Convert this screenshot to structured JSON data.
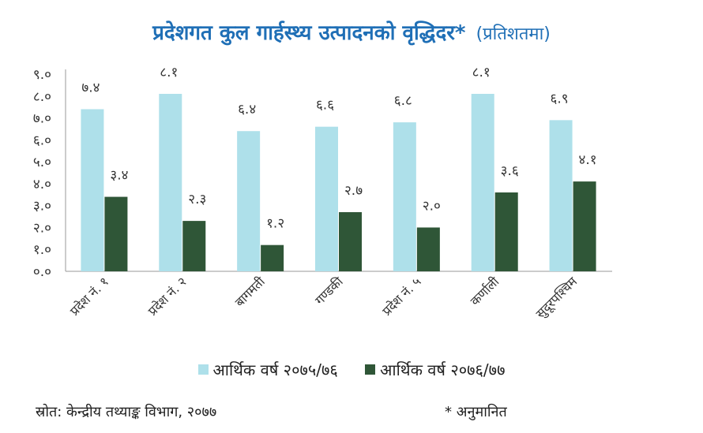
{
  "title": "प्रदेशगत कुल गार्हस्थ्य उत्पादनको वृद्धिदर*",
  "subtitle": "(प्रतिशतमा)",
  "source": "स्रोत: केन्द्रीय तथ्याङ्क विभाग, २०७७",
  "note": "* अनुमानित",
  "colors": {
    "series1": "#aee0ea",
    "series2": "#2f5637",
    "title": "#1f6fb6"
  },
  "chart_data": {
    "type": "bar",
    "categories": [
      "प्रदेश नं. १",
      "प्रदेश नं. २",
      "बागमती",
      "गण्डकी",
      "प्रदेश नं. ५",
      "कर्णाली",
      "सुदूरपश्चिम"
    ],
    "series": [
      {
        "name": "आर्थिक वर्ष २०७५/७६",
        "values": [
          7.4,
          8.1,
          6.4,
          6.6,
          6.8,
          8.1,
          6.9
        ],
        "labels": [
          "७.४",
          "८.१",
          "६.४",
          "६.६",
          "६.८",
          "८.१",
          "६.९"
        ]
      },
      {
        "name": "आर्थिक वर्ष २०७६/७७",
        "values": [
          3.4,
          2.3,
          1.2,
          2.7,
          2.0,
          3.6,
          4.1
        ],
        "labels": [
          "३.४",
          "२.३",
          "१.२",
          "२.७",
          "२.०",
          "३.६",
          "४.१"
        ]
      }
    ],
    "ylim": [
      0,
      9
    ],
    "yticks": [
      0,
      1,
      2,
      3,
      4,
      5,
      6,
      7,
      8,
      9
    ],
    "ytick_labels": [
      "०.०",
      "१.०",
      "२.०",
      "३.०",
      "४.०",
      "५.०",
      "६.०",
      "७.०",
      "८.०",
      "९.०"
    ],
    "grid": false,
    "legend_position": "bottom"
  }
}
